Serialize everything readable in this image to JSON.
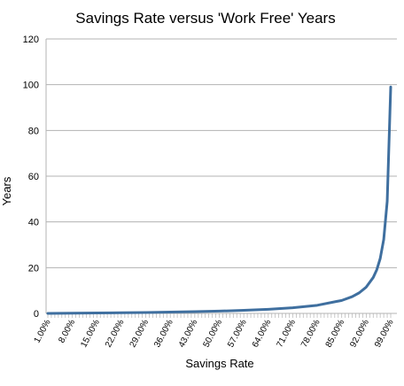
{
  "chart_data": {
    "type": "line",
    "title": "Savings Rate versus 'Work Free' Years",
    "xlabel": "Savings Rate",
    "ylabel": "Years",
    "ylim": [
      0,
      120
    ],
    "y_ticks": [
      0,
      20,
      40,
      60,
      80,
      100,
      120
    ],
    "x_tick_labels": [
      "1.00%",
      "8.00%",
      "15.00%",
      "22.00%",
      "29.00%",
      "36.00%",
      "43.00%",
      "50.00%",
      "57.00%",
      "64.00%",
      "71.00%",
      "78.00%",
      "85.00%",
      "92.00%",
      "99.00%"
    ],
    "x_range": [
      1,
      99
    ],
    "grid": "horizontal",
    "series": [
      {
        "values_note": "",
        "color": "#3f6f9f",
        "points": [
          [
            1,
            0.01
          ],
          [
            8,
            0.09
          ],
          [
            15,
            0.18
          ],
          [
            22,
            0.28
          ],
          [
            29,
            0.41
          ],
          [
            36,
            0.56
          ],
          [
            43,
            0.75
          ],
          [
            50,
            1.0
          ],
          [
            57,
            1.33
          ],
          [
            64,
            1.78
          ],
          [
            71,
            2.45
          ],
          [
            78,
            3.55
          ],
          [
            85,
            5.67
          ],
          [
            88,
            7.33
          ],
          [
            90,
            9.0
          ],
          [
            92,
            11.5
          ],
          [
            94,
            15.7
          ],
          [
            95,
            19.0
          ],
          [
            96,
            24.0
          ],
          [
            97,
            32.3
          ],
          [
            98,
            49.0
          ],
          [
            99,
            99.0
          ]
        ]
      }
    ]
  }
}
